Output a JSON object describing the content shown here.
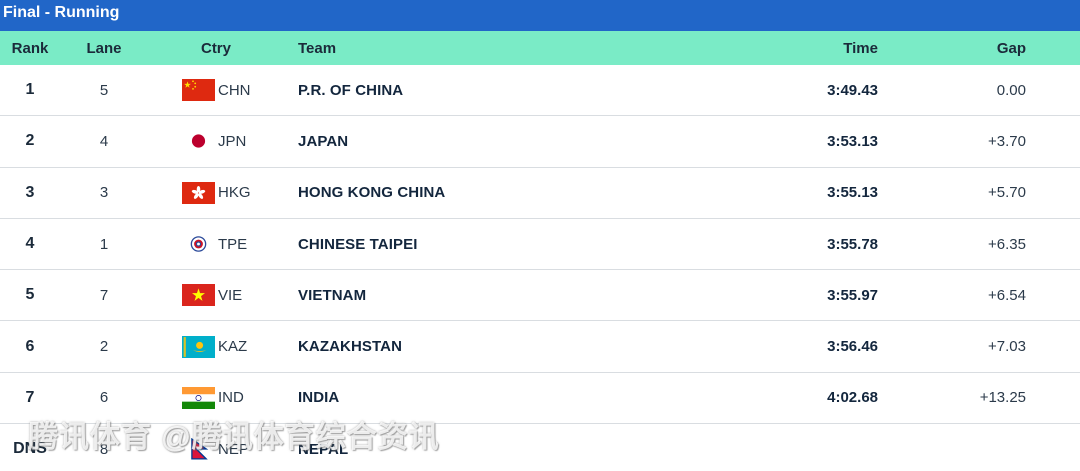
{
  "title": "Final - Running",
  "columns": {
    "rank": "Rank",
    "lane": "Lane",
    "ctry": "Ctry",
    "team": "Team",
    "time": "Time",
    "gap": "Gap"
  },
  "rows": [
    {
      "rank": "1",
      "lane": "5",
      "flag": "china-flag-icon",
      "code": "CHN",
      "team": "P.R. OF CHINA",
      "time": "3:49.43",
      "gap": "0.00"
    },
    {
      "rank": "2",
      "lane": "4",
      "flag": "japan-flag-icon",
      "code": "JPN",
      "team": "JAPAN",
      "time": "3:53.13",
      "gap": "+3.70"
    },
    {
      "rank": "3",
      "lane": "3",
      "flag": "hong-kong-flag-icon",
      "code": "HKG",
      "team": "HONG KONG CHINA",
      "time": "3:55.13",
      "gap": "+5.70"
    },
    {
      "rank": "4",
      "lane": "1",
      "flag": "chinese-taipei-flag-icon",
      "code": "TPE",
      "team": "CHINESE TAIPEI",
      "time": "3:55.78",
      "gap": "+6.35"
    },
    {
      "rank": "5",
      "lane": "7",
      "flag": "vietnam-flag-icon",
      "code": "VIE",
      "team": "VIETNAM",
      "time": "3:55.97",
      "gap": "+6.54"
    },
    {
      "rank": "6",
      "lane": "2",
      "flag": "kazakhstan-flag-icon",
      "code": "KAZ",
      "team": "KAZAKHSTAN",
      "time": "3:56.46",
      "gap": "+7.03"
    },
    {
      "rank": "7",
      "lane": "6",
      "flag": "india-flag-icon",
      "code": "IND",
      "team": "INDIA",
      "time": "4:02.68",
      "gap": "+13.25"
    },
    {
      "rank": "DNS",
      "lane": "8",
      "flag": "nepal-flag-icon",
      "code": "NEP",
      "team": "NEPAL",
      "time": "",
      "gap": ""
    }
  ],
  "watermark": "腾讯体育 @腾讯体育综合资讯",
  "colors": {
    "title_bar": "#2166c8",
    "header_row": "#7aebc6"
  }
}
